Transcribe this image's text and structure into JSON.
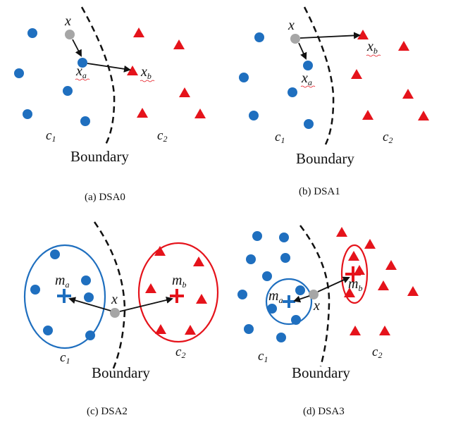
{
  "colors": {
    "blue": "#1f6fbf",
    "red": "#e5131b",
    "gray": "#a6a6a6",
    "ink": "#111111"
  },
  "panels": [
    {
      "caption": "(a) DSA0",
      "boundary_label": "Boundary",
      "x_label": "x",
      "xa": {
        "base": "x",
        "sub": "a"
      },
      "xb": {
        "base": "x",
        "sub": "b"
      },
      "c1": {
        "base": "c",
        "sub": "1"
      },
      "c2": {
        "base": "c",
        "sub": "2"
      }
    },
    {
      "caption": "(b) DSA1",
      "boundary_label": "Boundary",
      "x_label": "x",
      "xa": {
        "base": "x",
        "sub": "a"
      },
      "xb": {
        "base": "x",
        "sub": "b"
      },
      "c1": {
        "base": "c",
        "sub": "1"
      },
      "c2": {
        "base": "c",
        "sub": "2"
      }
    },
    {
      "caption": "(c) DSA2",
      "boundary_label": "Boundary",
      "x_label": "x",
      "ma": {
        "base": "m",
        "sub": "a"
      },
      "mb": {
        "base": "m",
        "sub": "b"
      },
      "c1": {
        "base": "c",
        "sub": "1"
      },
      "c2": {
        "base": "c",
        "sub": "2"
      }
    },
    {
      "caption": "(d) DSA3",
      "boundary_label": "Boundary",
      "x_label": "x",
      "ma": {
        "base": "m",
        "sub": "a"
      },
      "mb": {
        "base": "m",
        "sub": "b"
      },
      "c1": {
        "base": "c",
        "sub": "1"
      },
      "c2": {
        "base": "c",
        "sub": "2"
      }
    }
  ]
}
